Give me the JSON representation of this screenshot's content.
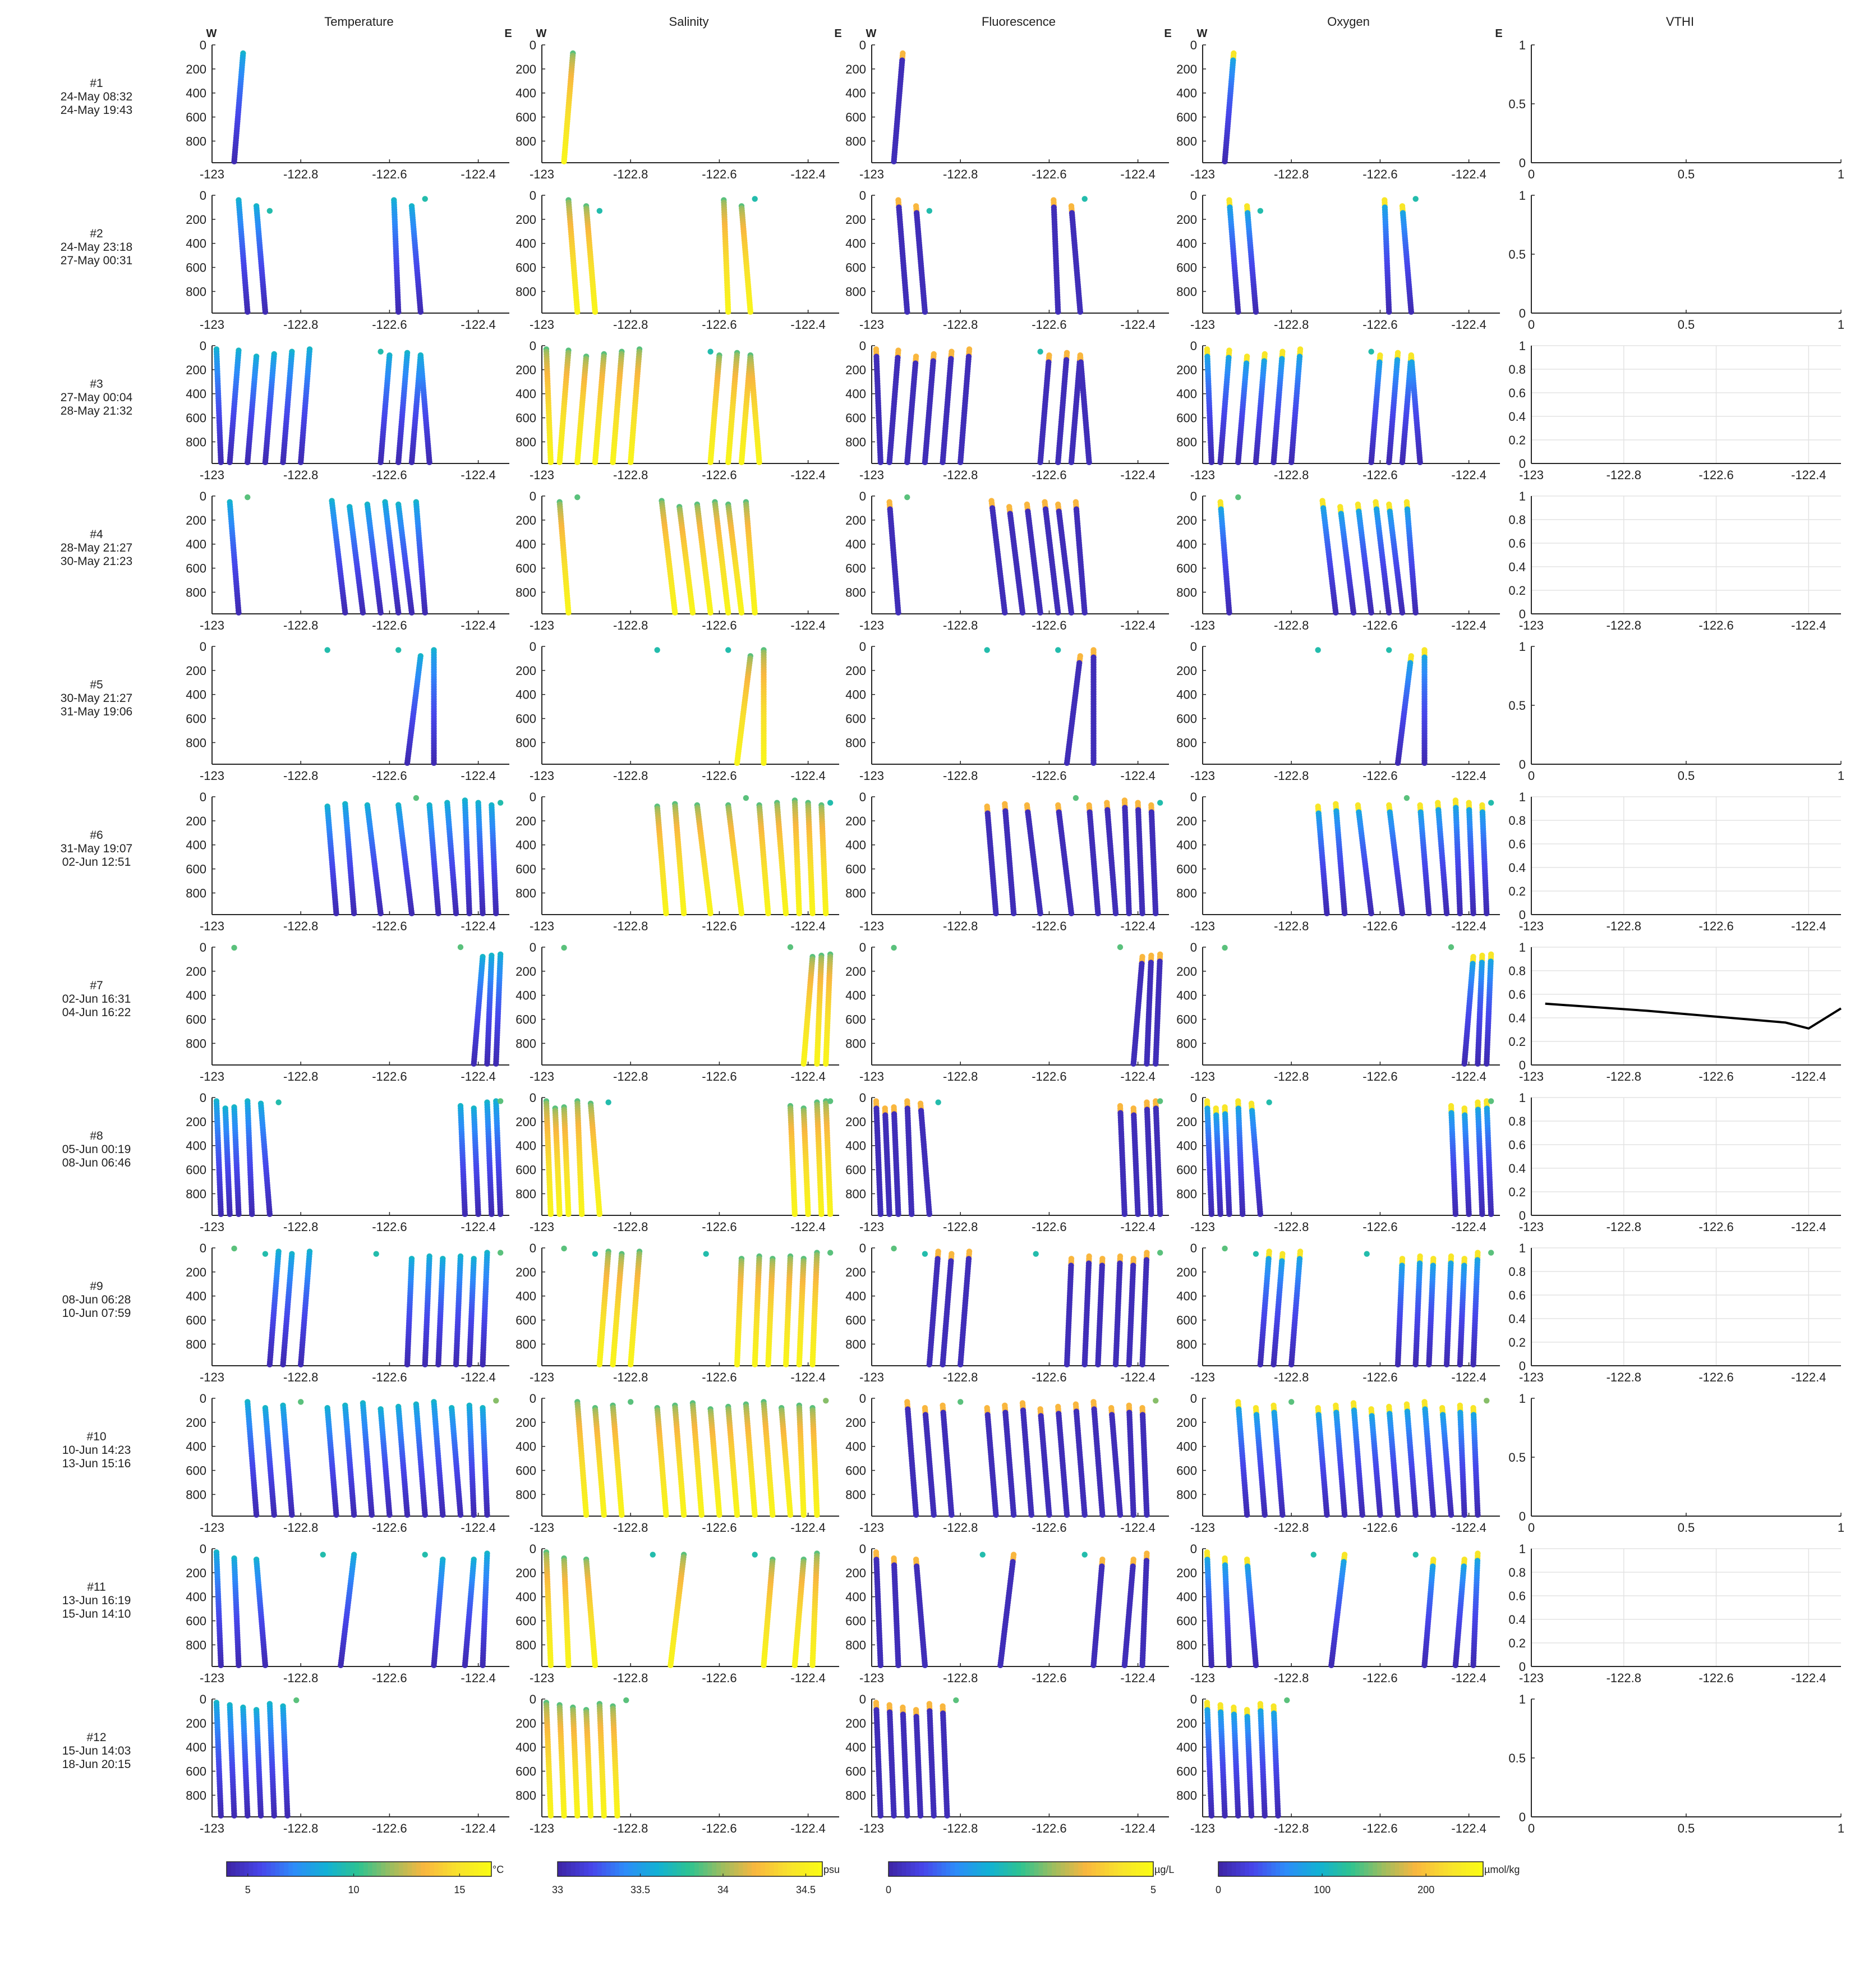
{
  "figure": {
    "column_titles": [
      "Temperature",
      "Salinity",
      "Fluorescence",
      "Oxygen",
      "VTHI"
    ],
    "west_label": "W",
    "east_label": "E"
  },
  "chart_data": {
    "type": "scatter",
    "colormap": [
      "#3e26a8",
      "#4746eb",
      "#2d8cf9",
      "#12b1d5",
      "#2ec390",
      "#9dbd5f",
      "#f9b73f",
      "#f8e12d",
      "#f9fb15"
    ],
    "panels": {
      "x_range": [
        -123,
        -122.33
      ],
      "x_ticks": [
        -123,
        -122.8,
        -122.6,
        -122.4
      ],
      "x_tick_labels": [
        "-123",
        "-122.8",
        "-122.6",
        "-122.4"
      ],
      "y_range_depth": [
        0,
        980
      ],
      "y_ticks": [
        0,
        200,
        400,
        600,
        800
      ],
      "y_tick_labels": [
        "0",
        "200",
        "400",
        "600",
        "800"
      ],
      "grid": false,
      "marker": "dot"
    },
    "vthi": {
      "type": "line",
      "empty_x_ticks": [
        "0",
        "0.5",
        "1"
      ],
      "empty_y_ticks": [
        "0",
        "0.5",
        "1"
      ],
      "grid_y_ticks": [
        "0",
        "0.2",
        "0.4",
        "0.6",
        "0.8",
        "1"
      ],
      "grid_x_ticks": [
        "-123",
        "-122.8",
        "-122.6",
        "-122.4"
      ]
    },
    "colorbars": [
      {
        "variable": "Temperature",
        "unit": "°C",
        "ticks": [
          "5",
          "10",
          "15"
        ],
        "range": [
          4,
          16.5
        ],
        "tick_values": [
          5,
          10,
          15
        ]
      },
      {
        "variable": "Salinity",
        "unit": "psu",
        "ticks": [
          "33",
          "33.5",
          "34",
          "34.5"
        ],
        "range": [
          33,
          34.6
        ],
        "tick_values": [
          33,
          33.5,
          34,
          34.5
        ]
      },
      {
        "variable": "Fluorescence",
        "unit": "µg/L",
        "ticks": [
          "0",
          "5"
        ],
        "range": [
          0,
          5
        ],
        "tick_values": [
          0,
          5
        ]
      },
      {
        "variable": "Oxygen",
        "unit": "µmol/kg",
        "ticks": [
          "0",
          "100",
          "200"
        ],
        "range": [
          0,
          255
        ],
        "tick_values": [
          0,
          100,
          200
        ]
      }
    ],
    "rows": [
      {
        "label": "#1",
        "start": "24-May 08:32",
        "end": "24-May 19:43",
        "vthi": "empty",
        "profiles": [
          {
            "lon_top": -122.93,
            "lon_bot": -122.95
          }
        ],
        "points": []
      },
      {
        "label": "#2",
        "start": "24-May 23:18",
        "end": "27-May 00:31",
        "vthi": "empty",
        "profiles": [
          {
            "lon_top": -122.94,
            "lon_bot": -122.92
          },
          {
            "lon_top": -122.9,
            "lon_bot": -122.88
          },
          {
            "lon_top": -122.59,
            "lon_bot": -122.58
          },
          {
            "lon_top": -122.55,
            "lon_bot": -122.53
          }
        ],
        "points": [
          {
            "lon": -122.87,
            "d": 130,
            "c": 0.45
          },
          {
            "lon": -122.52,
            "d": 30,
            "c": 0.45
          }
        ]
      },
      {
        "label": "#3",
        "start": "27-May 00:04",
        "end": "28-May 21:32",
        "vthi": "grid",
        "profiles": [
          {
            "lon_top": -122.99,
            "lon_bot": -122.98
          },
          {
            "lon_top": -122.94,
            "lon_bot": -122.96
          },
          {
            "lon_top": -122.9,
            "lon_bot": -122.92
          },
          {
            "lon_top": -122.86,
            "lon_bot": -122.88
          },
          {
            "lon_top": -122.82,
            "lon_bot": -122.84
          },
          {
            "lon_top": -122.78,
            "lon_bot": -122.8
          },
          {
            "lon_top": -122.6,
            "lon_bot": -122.62
          },
          {
            "lon_top": -122.56,
            "lon_bot": -122.58
          },
          {
            "lon_top": -122.53,
            "lon_bot": -122.55
          },
          {
            "lon_top": -122.53,
            "lon_bot": -122.51
          }
        ],
        "points": [
          {
            "lon": -122.62,
            "d": 50,
            "c": 0.45
          }
        ]
      },
      {
        "label": "#4",
        "start": "28-May 21:27",
        "end": "30-May 21:23",
        "vthi": "grid",
        "profiles": [
          {
            "lon_top": -122.96,
            "lon_bot": -122.94
          },
          {
            "lon_top": -122.73,
            "lon_bot": -122.7
          },
          {
            "lon_top": -122.69,
            "lon_bot": -122.66
          },
          {
            "lon_top": -122.65,
            "lon_bot": -122.62
          },
          {
            "lon_top": -122.61,
            "lon_bot": -122.58
          },
          {
            "lon_top": -122.58,
            "lon_bot": -122.55
          },
          {
            "lon_top": -122.54,
            "lon_bot": -122.52
          }
        ],
        "points": [
          {
            "lon": -122.92,
            "d": 10,
            "c": 0.55
          }
        ]
      },
      {
        "label": "#5",
        "start": "30-May 21:27",
        "end": "31-May 19:06",
        "vthi": "empty",
        "profiles": [
          {
            "lon_top": -122.53,
            "lon_bot": -122.56
          },
          {
            "lon_top": -122.5,
            "lon_bot": -122.5
          }
        ],
        "points": [
          {
            "lon": -122.74,
            "d": 30,
            "c": 0.45
          },
          {
            "lon": -122.58,
            "d": 30,
            "c": 0.45
          }
        ]
      },
      {
        "label": "#6",
        "start": "31-May 19:07",
        "end": "02-Jun 12:51",
        "vthi": "grid",
        "profiles": [
          {
            "lon_top": -122.74,
            "lon_bot": -122.72
          },
          {
            "lon_top": -122.7,
            "lon_bot": -122.68
          },
          {
            "lon_top": -122.65,
            "lon_bot": -122.62
          },
          {
            "lon_top": -122.58,
            "lon_bot": -122.55
          },
          {
            "lon_top": -122.51,
            "lon_bot": -122.49
          },
          {
            "lon_top": -122.47,
            "lon_bot": -122.45
          },
          {
            "lon_top": -122.43,
            "lon_bot": -122.42
          },
          {
            "lon_top": -122.4,
            "lon_bot": -122.39
          },
          {
            "lon_top": -122.37,
            "lon_bot": -122.36
          }
        ],
        "points": [
          {
            "lon": -122.54,
            "d": 10,
            "c": 0.55
          },
          {
            "lon": -122.35,
            "d": 50,
            "c": 0.45
          }
        ]
      },
      {
        "label": "#7",
        "start": "02-Jun 16:31",
        "end": "04-Jun 16:22",
        "vthi": "line",
        "vthi_x": [
          -122.97,
          -122.75,
          -122.45,
          -122.4,
          -122.33
        ],
        "vthi_y": [
          0.52,
          0.46,
          0.36,
          0.31,
          0.48
        ],
        "profiles": [
          {
            "lon_top": -122.39,
            "lon_bot": -122.41
          },
          {
            "lon_top": -122.37,
            "lon_bot": -122.38
          },
          {
            "lon_top": -122.35,
            "lon_bot": -122.36
          }
        ],
        "points": [
          {
            "lon": -122.95,
            "d": 5,
            "c": 0.55
          },
          {
            "lon": -122.44,
            "d": 0,
            "c": 0.55
          }
        ]
      },
      {
        "label": "#8",
        "start": "05-Jun 00:19",
        "end": "08-Jun 06:46",
        "vthi": "grid",
        "profiles": [
          {
            "lon_top": -122.99,
            "lon_bot": -122.98
          },
          {
            "lon_top": -122.97,
            "lon_bot": -122.96
          },
          {
            "lon_top": -122.95,
            "lon_bot": -122.94
          },
          {
            "lon_top": -122.92,
            "lon_bot": -122.91
          },
          {
            "lon_top": -122.89,
            "lon_bot": -122.87
          },
          {
            "lon_top": -122.44,
            "lon_bot": -122.43
          },
          {
            "lon_top": -122.41,
            "lon_bot": -122.4
          },
          {
            "lon_top": -122.38,
            "lon_bot": -122.37
          },
          {
            "lon_top": -122.36,
            "lon_bot": -122.35
          }
        ],
        "points": [
          {
            "lon": -122.85,
            "d": 40,
            "c": 0.45
          },
          {
            "lon": -122.35,
            "d": 30,
            "c": 0.55
          }
        ]
      },
      {
        "label": "#9",
        "start": "08-Jun 06:28",
        "end": "10-Jun 07:59",
        "vthi": "grid",
        "profiles": [
          {
            "lon_top": -122.85,
            "lon_bot": -122.87
          },
          {
            "lon_top": -122.82,
            "lon_bot": -122.84
          },
          {
            "lon_top": -122.78,
            "lon_bot": -122.8
          },
          {
            "lon_top": -122.55,
            "lon_bot": -122.56
          },
          {
            "lon_top": -122.51,
            "lon_bot": -122.52
          },
          {
            "lon_top": -122.48,
            "lon_bot": -122.49
          },
          {
            "lon_top": -122.44,
            "lon_bot": -122.45
          },
          {
            "lon_top": -122.41,
            "lon_bot": -122.42
          },
          {
            "lon_top": -122.38,
            "lon_bot": -122.39
          }
        ],
        "points": [
          {
            "lon": -122.95,
            "d": 5,
            "c": 0.55
          },
          {
            "lon": -122.88,
            "d": 50,
            "c": 0.45
          },
          {
            "lon": -122.63,
            "d": 50,
            "c": 0.45
          },
          {
            "lon": -122.35,
            "d": 40,
            "c": 0.55
          }
        ]
      },
      {
        "label": "#10",
        "start": "10-Jun 14:23",
        "end": "13-Jun 15:16",
        "vthi": "empty",
        "profiles": [
          {
            "lon_top": -122.92,
            "lon_bot": -122.9
          },
          {
            "lon_top": -122.88,
            "lon_bot": -122.86
          },
          {
            "lon_top": -122.84,
            "lon_bot": -122.82
          },
          {
            "lon_top": -122.74,
            "lon_bot": -122.72
          },
          {
            "lon_top": -122.7,
            "lon_bot": -122.68
          },
          {
            "lon_top": -122.66,
            "lon_bot": -122.64
          },
          {
            "lon_top": -122.62,
            "lon_bot": -122.6
          },
          {
            "lon_top": -122.58,
            "lon_bot": -122.56
          },
          {
            "lon_top": -122.54,
            "lon_bot": -122.52
          },
          {
            "lon_top": -122.5,
            "lon_bot": -122.48
          },
          {
            "lon_top": -122.46,
            "lon_bot": -122.44
          },
          {
            "lon_top": -122.42,
            "lon_bot": -122.41
          },
          {
            "lon_top": -122.39,
            "lon_bot": -122.38
          }
        ],
        "points": [
          {
            "lon": -122.8,
            "d": 30,
            "c": 0.55
          },
          {
            "lon": -122.36,
            "d": 20,
            "c": 0.6
          }
        ]
      },
      {
        "label": "#11",
        "start": "13-Jun 16:19",
        "end": "15-Jun 14:10",
        "vthi": "grid",
        "profiles": [
          {
            "lon_top": -122.99,
            "lon_bot": -122.98
          },
          {
            "lon_top": -122.95,
            "lon_bot": -122.94
          },
          {
            "lon_top": -122.9,
            "lon_bot": -122.88
          },
          {
            "lon_top": -122.68,
            "lon_bot": -122.71
          },
          {
            "lon_top": -122.48,
            "lon_bot": -122.5
          },
          {
            "lon_top": -122.41,
            "lon_bot": -122.43
          },
          {
            "lon_top": -122.38,
            "lon_bot": -122.39
          }
        ],
        "points": [
          {
            "lon": -122.75,
            "d": 50,
            "c": 0.45
          },
          {
            "lon": -122.52,
            "d": 50,
            "c": 0.45
          }
        ]
      },
      {
        "label": "#12",
        "start": "15-Jun 14:03",
        "end": "18-Jun 20:15",
        "vthi": "empty",
        "profiles": [
          {
            "lon_top": -122.99,
            "lon_bot": -122.98
          },
          {
            "lon_top": -122.96,
            "lon_bot": -122.95
          },
          {
            "lon_top": -122.93,
            "lon_bot": -122.92
          },
          {
            "lon_top": -122.9,
            "lon_bot": -122.89
          },
          {
            "lon_top": -122.87,
            "lon_bot": -122.86
          },
          {
            "lon_top": -122.84,
            "lon_bot": -122.83
          }
        ],
        "points": [
          {
            "lon": -122.81,
            "d": 10,
            "c": 0.55
          }
        ]
      }
    ]
  }
}
